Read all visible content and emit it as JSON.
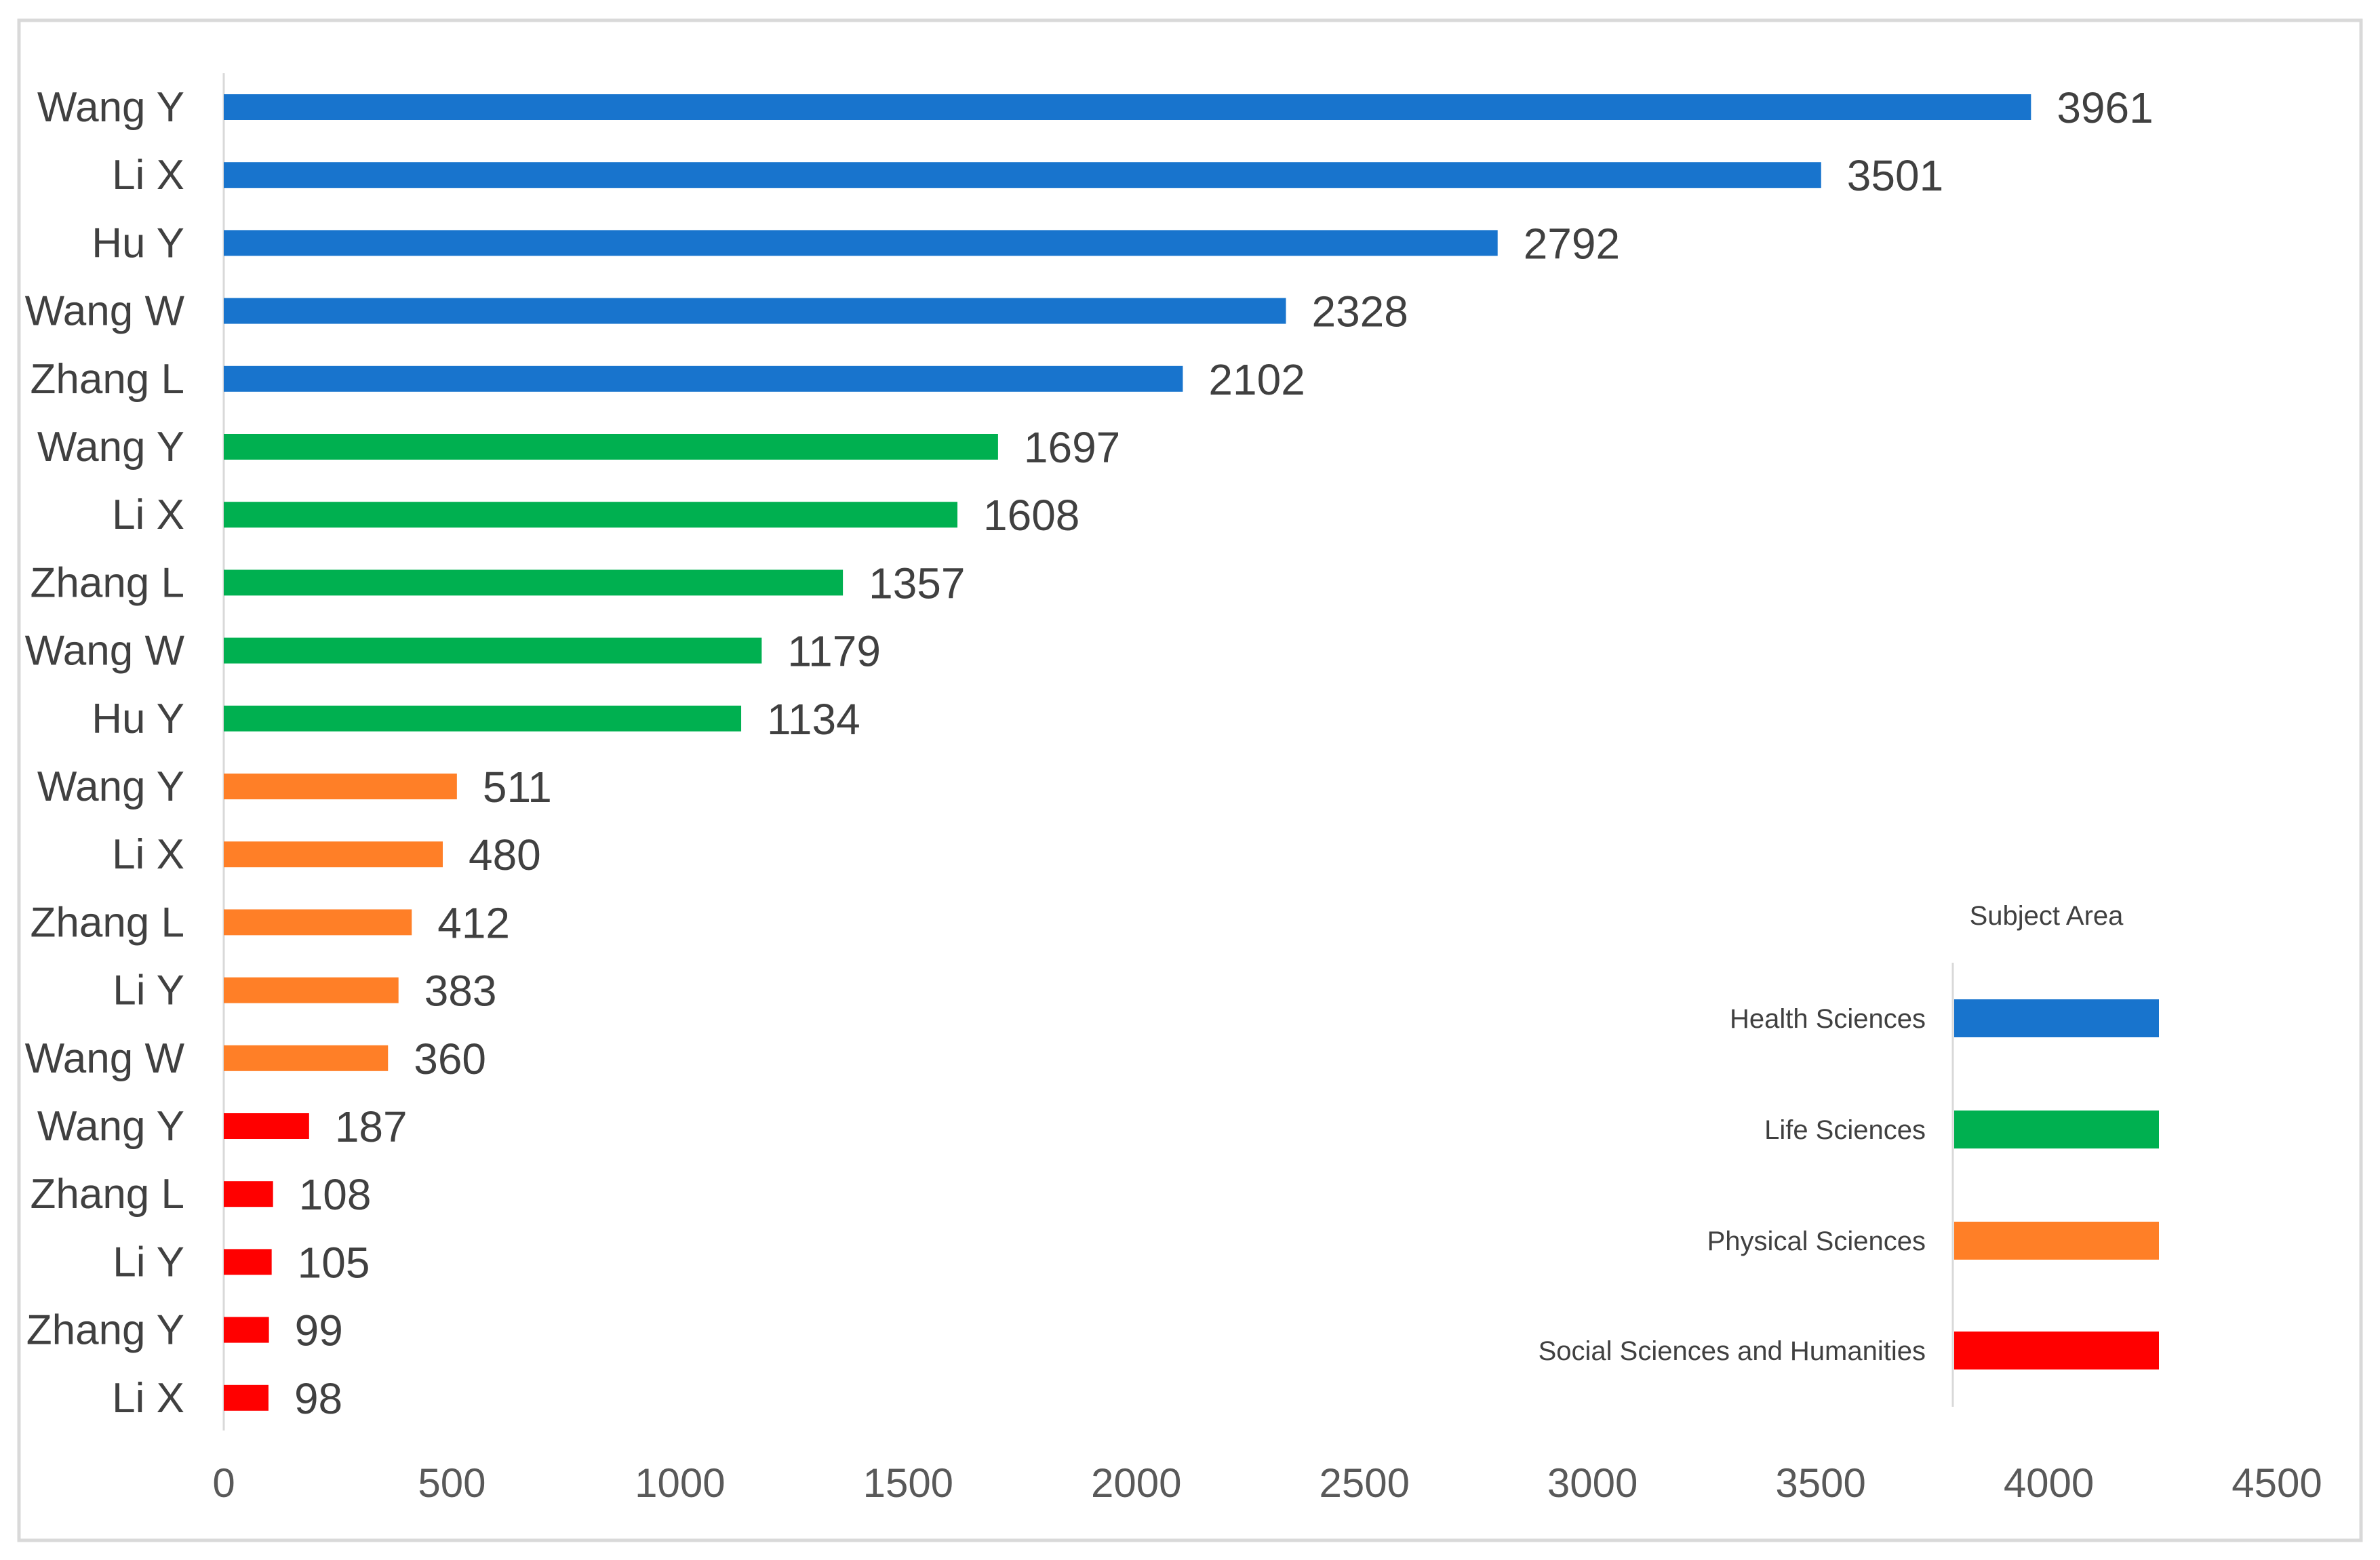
{
  "chart_data": {
    "type": "bar",
    "orientation": "horizontal",
    "title": "",
    "xlabel": "",
    "ylabel": "",
    "xlim": [
      0,
      4500
    ],
    "xticks": [
      0,
      500,
      1000,
      1500,
      2000,
      2500,
      3000,
      3500,
      4000,
      4500
    ],
    "grid": false,
    "legend": {
      "title": "Subject Area",
      "placement": "bottom-right",
      "entries": [
        {
          "name": "Health Sciences",
          "color": "#1874CD"
        },
        {
          "name": "Life Sciences",
          "color": "#00B050"
        },
        {
          "name": "Physical Sciences",
          "color": "#FF7F27"
        },
        {
          "name": "Social Sciences and Humanities",
          "color": "#FF0000"
        }
      ]
    },
    "bars": [
      {
        "label": "Wang Y",
        "value": 3961,
        "group": "Health Sciences"
      },
      {
        "label": "Li X",
        "value": 3501,
        "group": "Health Sciences"
      },
      {
        "label": "Hu Y",
        "value": 2792,
        "group": "Health Sciences"
      },
      {
        "label": "Wang W",
        "value": 2328,
        "group": "Health Sciences"
      },
      {
        "label": "Zhang L",
        "value": 2102,
        "group": "Health Sciences"
      },
      {
        "label": "Wang Y",
        "value": 1697,
        "group": "Life Sciences"
      },
      {
        "label": "Li X",
        "value": 1608,
        "group": "Life Sciences"
      },
      {
        "label": "Zhang L",
        "value": 1357,
        "group": "Life Sciences"
      },
      {
        "label": "Wang W",
        "value": 1179,
        "group": "Life Sciences"
      },
      {
        "label": "Hu Y",
        "value": 1134,
        "group": "Life Sciences"
      },
      {
        "label": "Wang Y",
        "value": 511,
        "group": "Physical Sciences"
      },
      {
        "label": "Li X",
        "value": 480,
        "group": "Physical Sciences"
      },
      {
        "label": "Zhang L",
        "value": 412,
        "group": "Physical Sciences"
      },
      {
        "label": "Li Y",
        "value": 383,
        "group": "Physical Sciences"
      },
      {
        "label": "Wang W",
        "value": 360,
        "group": "Physical Sciences"
      },
      {
        "label": "Wang Y",
        "value": 187,
        "group": "Social Sciences and Humanities"
      },
      {
        "label": "Zhang L",
        "value": 108,
        "group": "Social Sciences and Humanities"
      },
      {
        "label": "Li Y",
        "value": 105,
        "group": "Social Sciences and Humanities"
      },
      {
        "label": "Zhang Y",
        "value": 99,
        "group": "Social Sciences and Humanities"
      },
      {
        "label": "Li X",
        "value": 98,
        "group": "Social Sciences and Humanities"
      }
    ]
  }
}
